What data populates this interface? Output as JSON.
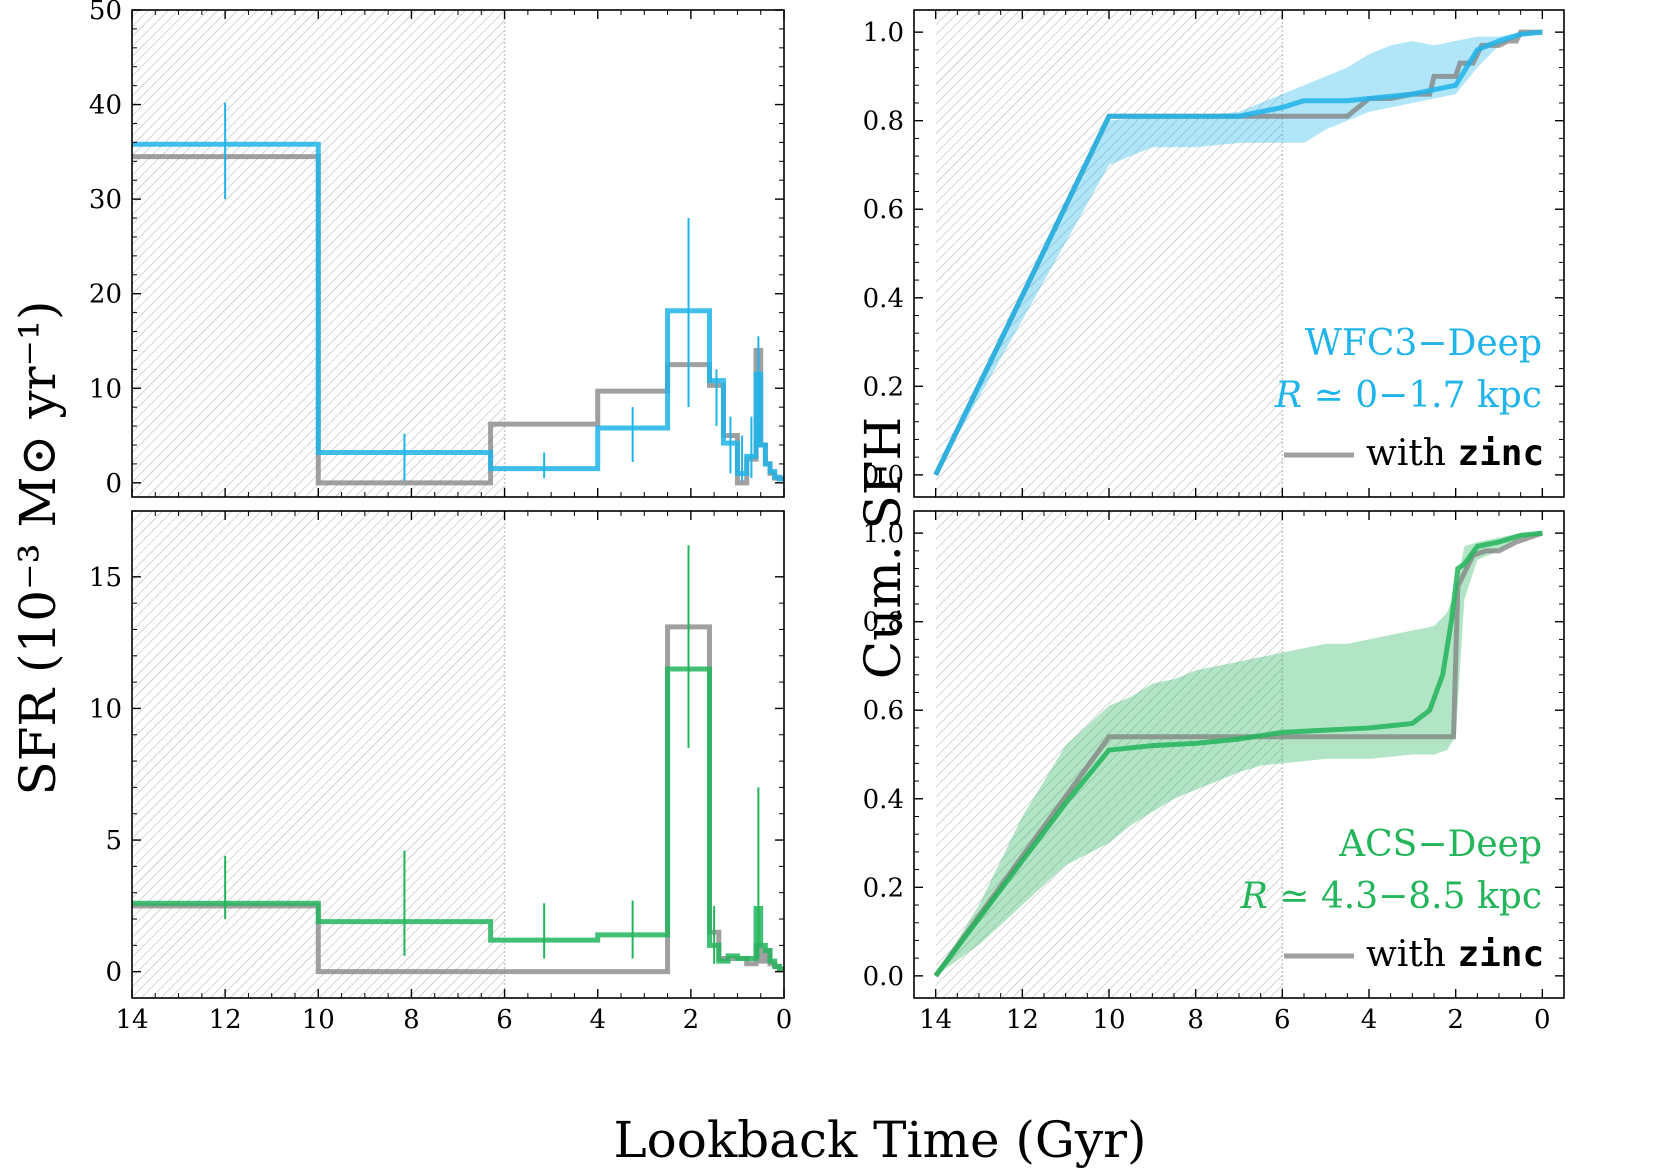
{
  "figure": {
    "xlabel": "Lookback Time (Gyr)",
    "ylabel_left": "SFR (10⁻³ M⊙ yr⁻¹)",
    "ylabel_right": "Cum. SFH"
  },
  "colors": {
    "blue": "#1fb4ea",
    "green": "#22b55a",
    "gray": "#808080",
    "hatch": "#b0b0b0"
  },
  "chart_data": [
    {
      "id": "sfr-wfc3",
      "type": "line",
      "subtype": "step",
      "xlim": [
        14,
        0
      ],
      "ylim": [
        -1.5,
        50
      ],
      "xticks": [
        14,
        12,
        10,
        8,
        6,
        4,
        2,
        0
      ],
      "yticks": [
        0,
        10,
        20,
        30,
        40,
        50
      ],
      "show_xtick_labels": false,
      "hatch_region": [
        14,
        6
      ],
      "series": [
        {
          "name": "with zinc",
          "color": "gray",
          "step_edges": [
            14,
            10,
            6.3,
            4,
            2.5,
            1.6,
            1.3,
            1.0,
            0.8,
            0.6,
            0.5,
            0.4,
            0.3,
            0.2,
            0.1,
            0
          ],
          "step_values": [
            34.5,
            0,
            6.2,
            9.7,
            12.5,
            10.3,
            5.0,
            0,
            2.5,
            14.0,
            4.0,
            2.0,
            1.0,
            0.5,
            0.5
          ]
        },
        {
          "name": "WFC3-Deep",
          "color": "blue",
          "step_edges": [
            14,
            10,
            6.3,
            4,
            2.5,
            1.6,
            1.3,
            1.0,
            0.8,
            0.6,
            0.5,
            0.4,
            0.3,
            0.2,
            0.1,
            0
          ],
          "step_values": [
            35.8,
            3.2,
            1.5,
            5.8,
            18.2,
            10.8,
            4.2,
            1.0,
            2.8,
            11.5,
            4.0,
            2.0,
            1.2,
            0.6,
            0.4
          ],
          "errorbars": [
            {
              "x": 12.0,
              "y": 35.8,
              "lo": 30.0,
              "hi": 40.2
            },
            {
              "x": 8.15,
              "y": 3.2,
              "lo": 0.2,
              "hi": 5.2
            },
            {
              "x": 5.15,
              "y": 1.5,
              "lo": 0.5,
              "hi": 3.2
            },
            {
              "x": 3.25,
              "y": 5.8,
              "lo": 2.2,
              "hi": 8.0
            },
            {
              "x": 2.05,
              "y": 18.2,
              "lo": 8.0,
              "hi": 28.0
            },
            {
              "x": 1.45,
              "y": 10.8,
              "lo": 6.0,
              "hi": 12.0
            },
            {
              "x": 1.15,
              "y": 4.2,
              "lo": 1.0,
              "hi": 7.0
            },
            {
              "x": 0.9,
              "y": 1.0,
              "lo": 0.2,
              "hi": 5.0
            },
            {
              "x": 0.7,
              "y": 2.8,
              "lo": 0.5,
              "hi": 7.0
            },
            {
              "x": 0.55,
              "y": 11.5,
              "lo": 4.0,
              "hi": 15.5
            }
          ]
        }
      ]
    },
    {
      "id": "cum-wfc3",
      "type": "line",
      "xlim": [
        14.5,
        -0.5
      ],
      "ylim": [
        -0.05,
        1.05
      ],
      "xticks": [
        14,
        12,
        10,
        8,
        6,
        4,
        2,
        0
      ],
      "yticks": [
        0.0,
        0.2,
        0.4,
        0.6,
        0.8,
        1.0
      ],
      "ytick_labels": [
        "0.0",
        "0.2",
        "0.4",
        "0.6",
        "0.8",
        "1.0"
      ],
      "show_xtick_labels": false,
      "hatch_region": [
        14,
        6
      ],
      "band": {
        "color": "blue",
        "x": [
          14,
          10,
          9,
          8,
          7,
          6,
          5.5,
          5,
          4.5,
          4,
          3.5,
          3,
          2.5,
          2,
          1.5,
          1,
          0.5,
          0
        ],
        "lower": [
          0.0,
          0.7,
          0.74,
          0.74,
          0.75,
          0.75,
          0.75,
          0.78,
          0.8,
          0.82,
          0.83,
          0.84,
          0.85,
          0.86,
          0.92,
          0.97,
          0.99,
          1.0
        ],
        "upper": [
          0.0,
          0.8,
          0.81,
          0.81,
          0.82,
          0.86,
          0.88,
          0.9,
          0.92,
          0.95,
          0.97,
          0.98,
          0.97,
          0.98,
          0.99,
          0.99,
          1.0,
          1.0
        ]
      },
      "series": [
        {
          "name": "with zinc",
          "color": "gray",
          "x": [
            14,
            10,
            6,
            5,
            4.5,
            4,
            3.5,
            3,
            2.6,
            2.5,
            2.2,
            2.0,
            1.9,
            1.6,
            1.4,
            1.2,
            1.0,
            0.8,
            0.6,
            0.5,
            0.3,
            0
          ],
          "y": [
            0.0,
            0.81,
            0.81,
            0.81,
            0.81,
            0.85,
            0.85,
            0.86,
            0.86,
            0.9,
            0.9,
            0.9,
            0.93,
            0.93,
            0.97,
            0.97,
            0.97,
            0.98,
            0.98,
            1.0,
            1.0,
            1.0
          ]
        },
        {
          "name": "WFC3-Deep",
          "color": "blue",
          "x": [
            14,
            10,
            9,
            8,
            7,
            6,
            5.5,
            5,
            4.5,
            4,
            3.5,
            3,
            2.5,
            2,
            1.5,
            1,
            0.5,
            0
          ],
          "y": [
            0.0,
            0.81,
            0.81,
            0.81,
            0.81,
            0.83,
            0.845,
            0.845,
            0.845,
            0.85,
            0.855,
            0.86,
            0.87,
            0.88,
            0.96,
            0.98,
            0.995,
            1.0
          ]
        }
      ],
      "annotation": {
        "line1": "WFC3−Deep",
        "line2_var": "R",
        "line2_rest": " ≃ 0−1.7 kpc",
        "color": "blue"
      },
      "legend": {
        "label_prefix": "with ",
        "label_code": "zinc",
        "position": "bottom-right"
      }
    },
    {
      "id": "sfr-acs",
      "type": "line",
      "subtype": "step",
      "xlim": [
        14,
        0
      ],
      "ylim": [
        -1,
        17.5
      ],
      "xticks": [
        14,
        12,
        10,
        8,
        6,
        4,
        2,
        0
      ],
      "yticks": [
        0,
        5,
        10,
        15
      ],
      "show_xtick_labels": true,
      "hatch_region": [
        14,
        6
      ],
      "series": [
        {
          "name": "with zinc",
          "color": "gray",
          "step_edges": [
            14,
            10,
            6.3,
            4,
            2.5,
            1.6,
            1.4,
            1.2,
            1.0,
            0.8,
            0.6,
            0.5,
            0.4,
            0.3,
            0.2,
            0.1,
            0
          ],
          "step_values": [
            2.5,
            0,
            0,
            0,
            13.1,
            1.5,
            0.5,
            0.5,
            0.5,
            0.3,
            1.0,
            0.4,
            0.8,
            0.3,
            0.2,
            0.1
          ]
        },
        {
          "name": "ACS-Deep",
          "color": "green",
          "step_edges": [
            14,
            10,
            6.3,
            4,
            2.5,
            1.6,
            1.4,
            1.2,
            1.0,
            0.8,
            0.6,
            0.5,
            0.4,
            0.3,
            0.2,
            0.1,
            0
          ],
          "step_values": [
            2.6,
            1.9,
            1.2,
            1.4,
            11.5,
            1.0,
            0.4,
            0.6,
            0.5,
            0.5,
            2.4,
            1.0,
            0.8,
            0.4,
            0.2,
            0.1
          ]
        }
      ],
      "errorbars": [
        {
          "x": 12.0,
          "y": 2.6,
          "lo": 2.0,
          "hi": 4.4
        },
        {
          "x": 8.15,
          "y": 1.9,
          "lo": 0.6,
          "hi": 4.6
        },
        {
          "x": 5.15,
          "y": 1.2,
          "lo": 0.5,
          "hi": 2.6
        },
        {
          "x": 3.25,
          "y": 1.4,
          "lo": 0.5,
          "hi": 2.7
        },
        {
          "x": 2.05,
          "y": 11.5,
          "lo": 8.5,
          "hi": 16.2
        },
        {
          "x": 1.5,
          "y": 1.0,
          "lo": 0.3,
          "hi": 2.5
        },
        {
          "x": 0.55,
          "y": 2.4,
          "lo": 0.5,
          "hi": 7.0
        }
      ]
    },
    {
      "id": "cum-acs",
      "type": "line",
      "xlim": [
        14.5,
        -0.5
      ],
      "ylim": [
        -0.05,
        1.05
      ],
      "xticks": [
        14,
        12,
        10,
        8,
        6,
        4,
        2,
        0
      ],
      "yticks": [
        0.0,
        0.2,
        0.4,
        0.6,
        0.8,
        1.0
      ],
      "ytick_labels": [
        "0.0",
        "0.2",
        "0.4",
        "0.6",
        "0.8",
        "1.0"
      ],
      "show_xtick_labels": true,
      "hatch_region": [
        14,
        6
      ],
      "band": {
        "color": "green",
        "x": [
          14,
          13,
          12,
          11,
          10,
          9.5,
          9,
          8.5,
          8,
          7.5,
          7,
          6.5,
          6,
          5.5,
          5,
          4.5,
          4,
          3.5,
          3,
          2.5,
          2.2,
          2.0,
          1.8,
          1.5,
          1,
          0.5,
          0
        ],
        "lower": [
          0.0,
          0.07,
          0.16,
          0.25,
          0.3,
          0.34,
          0.37,
          0.4,
          0.42,
          0.44,
          0.46,
          0.475,
          0.48,
          0.485,
          0.49,
          0.49,
          0.49,
          0.495,
          0.5,
          0.5,
          0.51,
          0.54,
          0.85,
          0.94,
          0.96,
          0.99,
          1.0
        ],
        "upper": [
          0.0,
          0.16,
          0.36,
          0.52,
          0.61,
          0.63,
          0.66,
          0.67,
          0.69,
          0.7,
          0.71,
          0.72,
          0.73,
          0.74,
          0.75,
          0.75,
          0.76,
          0.77,
          0.78,
          0.79,
          0.82,
          0.87,
          0.97,
          0.98,
          0.99,
          1.0,
          1.0
        ]
      },
      "series": [
        {
          "name": "with zinc",
          "color": "gray",
          "x": [
            14,
            10,
            9,
            8,
            7,
            6,
            5,
            4,
            3,
            2.5,
            2.05,
            1.95,
            1.6,
            1.3,
            1.0,
            0.6,
            0.3,
            0
          ],
          "y": [
            0.0,
            0.54,
            0.54,
            0.54,
            0.54,
            0.54,
            0.54,
            0.54,
            0.54,
            0.54,
            0.54,
            0.88,
            0.95,
            0.96,
            0.96,
            0.98,
            0.99,
            1.0
          ]
        },
        {
          "name": "ACS-Deep",
          "color": "green",
          "x": [
            14,
            13,
            12,
            11,
            10,
            9,
            8,
            7,
            6,
            5,
            4,
            3.5,
            3,
            2.6,
            2.3,
            2.1,
            1.95,
            1.8,
            1.5,
            1.0,
            0.5,
            0
          ],
          "y": [
            0.0,
            0.13,
            0.26,
            0.39,
            0.51,
            0.52,
            0.525,
            0.535,
            0.55,
            0.555,
            0.56,
            0.565,
            0.57,
            0.6,
            0.68,
            0.8,
            0.92,
            0.93,
            0.97,
            0.98,
            0.995,
            1.0
          ]
        }
      ],
      "annotation": {
        "line1": "ACS−Deep",
        "line2_var": "R",
        "line2_rest": " ≃ 4.3−8.5 kpc",
        "color": "green"
      },
      "legend": {
        "label_prefix": "with ",
        "label_code": "zinc",
        "position": "bottom-right"
      }
    }
  ]
}
